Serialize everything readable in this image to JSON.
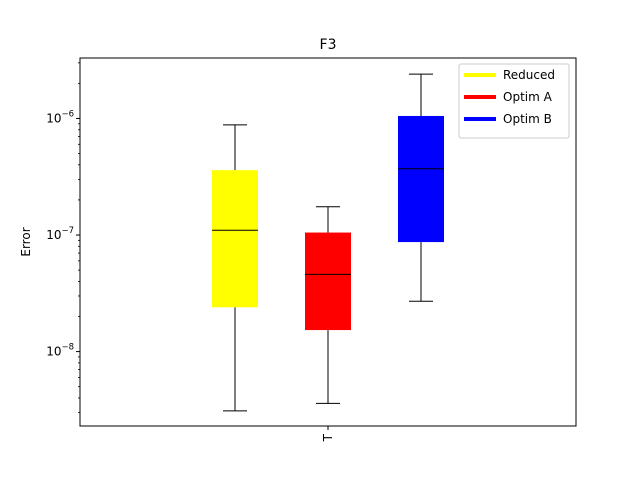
{
  "chart_data": {
    "type": "boxplot",
    "title": "F3",
    "xlabel": "",
    "ylabel": "Error",
    "y_scale": "log",
    "ylim": [
      2.3e-09,
      3.3e-06
    ],
    "x_ticks": [
      {
        "value": 0,
        "label": "T"
      }
    ],
    "y_ticks": [
      {
        "value": 1e-08,
        "base": "10",
        "exp": "−8"
      },
      {
        "value": 1e-07,
        "base": "10",
        "exp": "−7"
      },
      {
        "value": 1e-06,
        "base": "10",
        "exp": "−6"
      }
    ],
    "grid": false,
    "legend_position": "top-right",
    "series": [
      {
        "name": "Reduced",
        "color": "#ffff00",
        "offset": -1,
        "whisker_low": 3.1e-09,
        "q1": 2.4e-08,
        "median": 1.1e-07,
        "q3": 3.6e-07,
        "whisker_high": 8.8e-07
      },
      {
        "name": "Optim A",
        "color": "#ff0000",
        "offset": 0,
        "whisker_low": 3.6e-09,
        "q1": 1.53e-08,
        "median": 4.6e-08,
        "q3": 1.05e-07,
        "whisker_high": 1.75e-07
      },
      {
        "name": "Optim B",
        "color": "#0000ff",
        "offset": 1,
        "whisker_low": 2.7e-08,
        "q1": 8.7e-08,
        "median": 3.7e-07,
        "q3": 1.05e-06,
        "whisker_high": 2.4e-06
      }
    ]
  }
}
